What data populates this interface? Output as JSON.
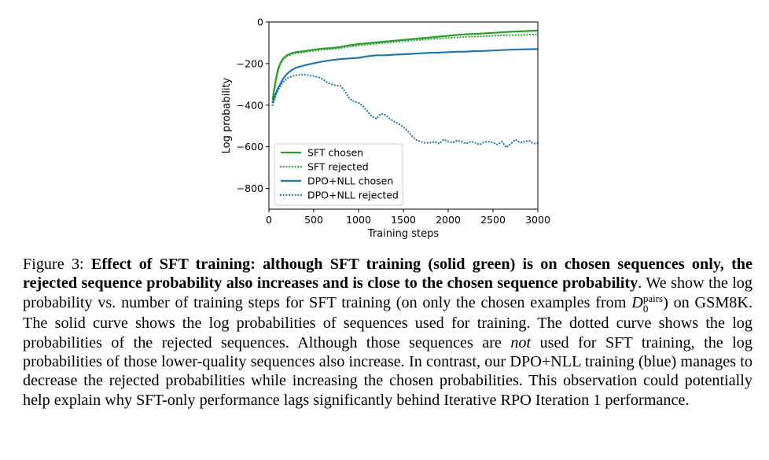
{
  "chart_data": {
    "type": "line",
    "xlabel": "Training steps",
    "ylabel": "Log probability",
    "xlim": [
      0,
      3000
    ],
    "ylim": [
      -900,
      0
    ],
    "x_ticks": [
      "0",
      "500",
      "1000",
      "1500",
      "2000",
      "2500",
      "3000"
    ],
    "y_ticks": [
      "0",
      "−200",
      "−400",
      "−600",
      "−800"
    ],
    "legend_position": "lower-left",
    "grid": false,
    "series": [
      {
        "name": "SFT chosen",
        "color": "#2ca02c",
        "style": "solid",
        "x": [
          40,
          60,
          80,
          100,
          130,
          160,
          200,
          250,
          300,
          400,
          500,
          600,
          700,
          800,
          900,
          1000,
          1100,
          1200,
          1300,
          1400,
          1500,
          1600,
          1700,
          1800,
          1900,
          2000,
          2100,
          2200,
          2300,
          2400,
          2500,
          2600,
          2700,
          2800,
          2900,
          3000
        ],
        "y": [
          -375,
          -320,
          -270,
          -230,
          -195,
          -175,
          -160,
          -150,
          -145,
          -140,
          -133,
          -128,
          -125,
          -120,
          -112,
          -106,
          -102,
          -98,
          -94,
          -90,
          -86,
          -82,
          -78,
          -74,
          -70,
          -66,
          -62,
          -59,
          -57,
          -55,
          -52,
          -49,
          -47,
          -45,
          -43,
          -41
        ]
      },
      {
        "name": "SFT rejected",
        "color": "#2ca02c",
        "style": "dotted",
        "x": [
          40,
          60,
          80,
          100,
          130,
          160,
          200,
          250,
          300,
          400,
          500,
          600,
          700,
          800,
          900,
          1000,
          1100,
          1200,
          1300,
          1400,
          1500,
          1600,
          1700,
          1800,
          1900,
          2000,
          2100,
          2200,
          2300,
          2400,
          2500,
          2600,
          2700,
          2800,
          2900,
          3000
        ],
        "y": [
          -385,
          -330,
          -280,
          -240,
          -200,
          -180,
          -165,
          -155,
          -150,
          -145,
          -138,
          -133,
          -130,
          -125,
          -118,
          -113,
          -108,
          -104,
          -100,
          -96,
          -92,
          -88,
          -85,
          -82,
          -79,
          -76,
          -74,
          -72,
          -70,
          -68,
          -66,
          -64,
          -63,
          -62,
          -61,
          -60
        ]
      },
      {
        "name": "DPO+NLL chosen",
        "color": "#1f77b4",
        "style": "solid",
        "x": [
          40,
          60,
          80,
          100,
          130,
          160,
          200,
          250,
          300,
          400,
          500,
          600,
          700,
          800,
          900,
          1000,
          1100,
          1200,
          1300,
          1400,
          1500,
          1600,
          1700,
          1800,
          1900,
          2000,
          2100,
          2200,
          2300,
          2400,
          2500,
          2600,
          2700,
          2800,
          2900,
          3000
        ],
        "y": [
          -390,
          -365,
          -340,
          -320,
          -295,
          -272,
          -250,
          -232,
          -220,
          -208,
          -198,
          -190,
          -183,
          -178,
          -175,
          -172,
          -165,
          -160,
          -160,
          -157,
          -155,
          -153,
          -150,
          -148,
          -147,
          -145,
          -143,
          -142,
          -140,
          -139,
          -137,
          -135,
          -133,
          -132,
          -131,
          -130
        ]
      },
      {
        "name": "DPO+NLL rejected",
        "color": "#1f77b4",
        "style": "dotted",
        "x": [
          40,
          60,
          80,
          100,
          130,
          160,
          200,
          250,
          300,
          350,
          400,
          450,
          500,
          550,
          600,
          650,
          700,
          750,
          800,
          850,
          900,
          950,
          1000,
          1050,
          1100,
          1150,
          1200,
          1250,
          1300,
          1350,
          1400,
          1450,
          1500,
          1550,
          1600,
          1650,
          1700,
          1750,
          1800,
          1850,
          1900,
          1950,
          2000,
          2050,
          2100,
          2150,
          2200,
          2250,
          2300,
          2350,
          2400,
          2450,
          2500,
          2550,
          2600,
          2650,
          2700,
          2750,
          2800,
          2850,
          2900,
          2950,
          3000
        ],
        "y": [
          -400,
          -375,
          -350,
          -330,
          -305,
          -288,
          -272,
          -262,
          -256,
          -254,
          -253,
          -257,
          -260,
          -265,
          -275,
          -290,
          -300,
          -305,
          -307,
          -335,
          -370,
          -382,
          -388,
          -405,
          -430,
          -455,
          -465,
          -440,
          -448,
          -465,
          -480,
          -490,
          -505,
          -525,
          -550,
          -570,
          -575,
          -582,
          -580,
          -575,
          -585,
          -565,
          -575,
          -580,
          -570,
          -575,
          -585,
          -575,
          -580,
          -590,
          -578,
          -575,
          -580,
          -590,
          -575,
          -603,
          -585,
          -565,
          -580,
          -575,
          -570,
          -585,
          -583
        ]
      }
    ]
  },
  "caption": {
    "figure_label": "Figure 3:",
    "bold_text": "Effect of SFT training: although SFT training (solid green) is on chosen sequences only, the rejected sequence probability also increases and is close to the chosen sequence probability",
    "bold_end": ".",
    "text_1": "We show the log probability vs.  number of training steps for SFT training (on only the chosen examples from ",
    "d_symbol": "D",
    "d_superscript": "pairs",
    "d_subscript": "0",
    "text_2": ") on GSM8K. The solid curve shows the log probabilities of sequences used for training. The dotted curve shows the log probabilities of the rejected sequences. Although those sequences are ",
    "emph": "not",
    "text_3": " used for SFT training, the log probabilities of those lower-quality sequences also increase. In contrast, our DPO+NLL training (blue) manages to decrease the rejected probabilities while increasing the chosen probabilities. This observation could potentially help explain why SFT-only performance lags significantly behind Iterative RPO Iteration 1 performance."
  }
}
